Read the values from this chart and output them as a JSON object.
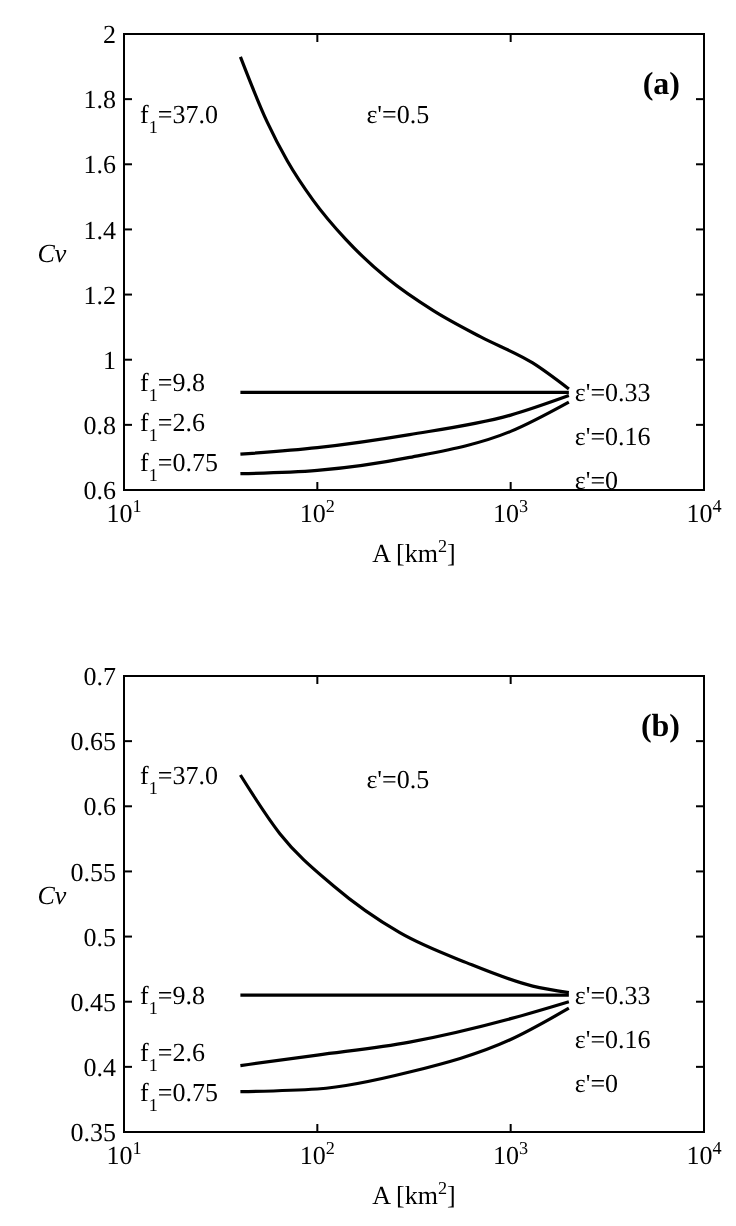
{
  "chart_data": [
    {
      "type": "line",
      "xlabel": "A [km$^{2}$]",
      "ylabel": "Cv",
      "log": "x",
      "xlim": [
        10,
        10000
      ],
      "ylim": [
        0.6,
        2
      ],
      "xticks": [
        {
          "value": 10,
          "label": "10$^{1}$"
        },
        {
          "value": 100,
          "label": "10$^{2}$"
        },
        {
          "value": 1000,
          "label": "10$^{3}$"
        },
        {
          "value": 10000,
          "label": "10$^{4}$"
        }
      ],
      "yticks": [
        0.6,
        0.8,
        1,
        1.2,
        1.4,
        1.6,
        1.8,
        2
      ],
      "legend": "left",
      "series": [
        {
          "name": "f$_{1}$=37.0",
          "color": "#000000",
          "x": [
            40,
            55,
            70,
            95,
            140,
            230,
            400,
            700,
            1300,
            2000
          ],
          "values": [
            1.93,
            1.73,
            1.61,
            1.49,
            1.37,
            1.25,
            1.15,
            1.07,
            0.99,
            0.91
          ]
        },
        {
          "name": "f$_{1}$=9.8",
          "color": "#000000",
          "x": [
            40,
            2000
          ],
          "values": [
            0.9,
            0.9
          ]
        },
        {
          "name": "f$_{1}$=2.6",
          "color": "#000000",
          "x": [
            40,
            100,
            300,
            1000,
            2000
          ],
          "values": [
            0.71,
            0.73,
            0.77,
            0.83,
            0.89
          ]
        },
        {
          "name": "f$_{1}$=0.75",
          "color": "#000000",
          "x": [
            40,
            100,
            300,
            1000,
            2000
          ],
          "values": [
            0.65,
            0.66,
            0.7,
            0.78,
            0.87
          ]
        }
      ],
      "annotations": [
        "(a)",
        "ε'=0.5",
        "ε'=0.33",
        "ε'=0.16",
        "ε'=0"
      ]
    },
    {
      "type": "line",
      "xlabel": "A [km$^{2}$]",
      "ylabel": "Cv",
      "log": "x",
      "xlim": [
        10,
        10000
      ],
      "ylim": [
        0.35,
        0.7
      ],
      "xticks": [
        {
          "value": 10,
          "label": "10$^{1}$"
        },
        {
          "value": 100,
          "label": "10$^{2}$"
        },
        {
          "value": 1000,
          "label": "10$^{3}$"
        },
        {
          "value": 10000,
          "label": "10$^{4}$"
        }
      ],
      "yticks": [
        0.35,
        0.4,
        0.45,
        0.5,
        0.55,
        0.6,
        0.65,
        0.7
      ],
      "legend": "left",
      "series": [
        {
          "name": "f$_{1}$=37.0",
          "color": "#000000",
          "x": [
            40,
            64,
            121,
            267,
            590,
            1300,
            2000
          ],
          "values": [
            0.624,
            0.579,
            0.539,
            0.503,
            0.48,
            0.462,
            0.457
          ]
        },
        {
          "name": "f$_{1}$=9.8",
          "color": "#000000",
          "x": [
            40,
            2000
          ],
          "values": [
            0.455,
            0.455
          ]
        },
        {
          "name": "f$_{1}$=2.6",
          "color": "#000000",
          "x": [
            40,
            100,
            300,
            1000,
            2000
          ],
          "values": [
            0.401,
            0.409,
            0.419,
            0.437,
            0.45
          ]
        },
        {
          "name": "f$_{1}$=0.75",
          "color": "#000000",
          "x": [
            40,
            100,
            300,
            1000,
            2000
          ],
          "values": [
            0.381,
            0.383,
            0.396,
            0.421,
            0.445
          ]
        }
      ],
      "annotations": [
        "(b)",
        "ε'=0.5",
        "ε'=0.33",
        "ε'=0.16",
        "ε'=0"
      ]
    }
  ]
}
